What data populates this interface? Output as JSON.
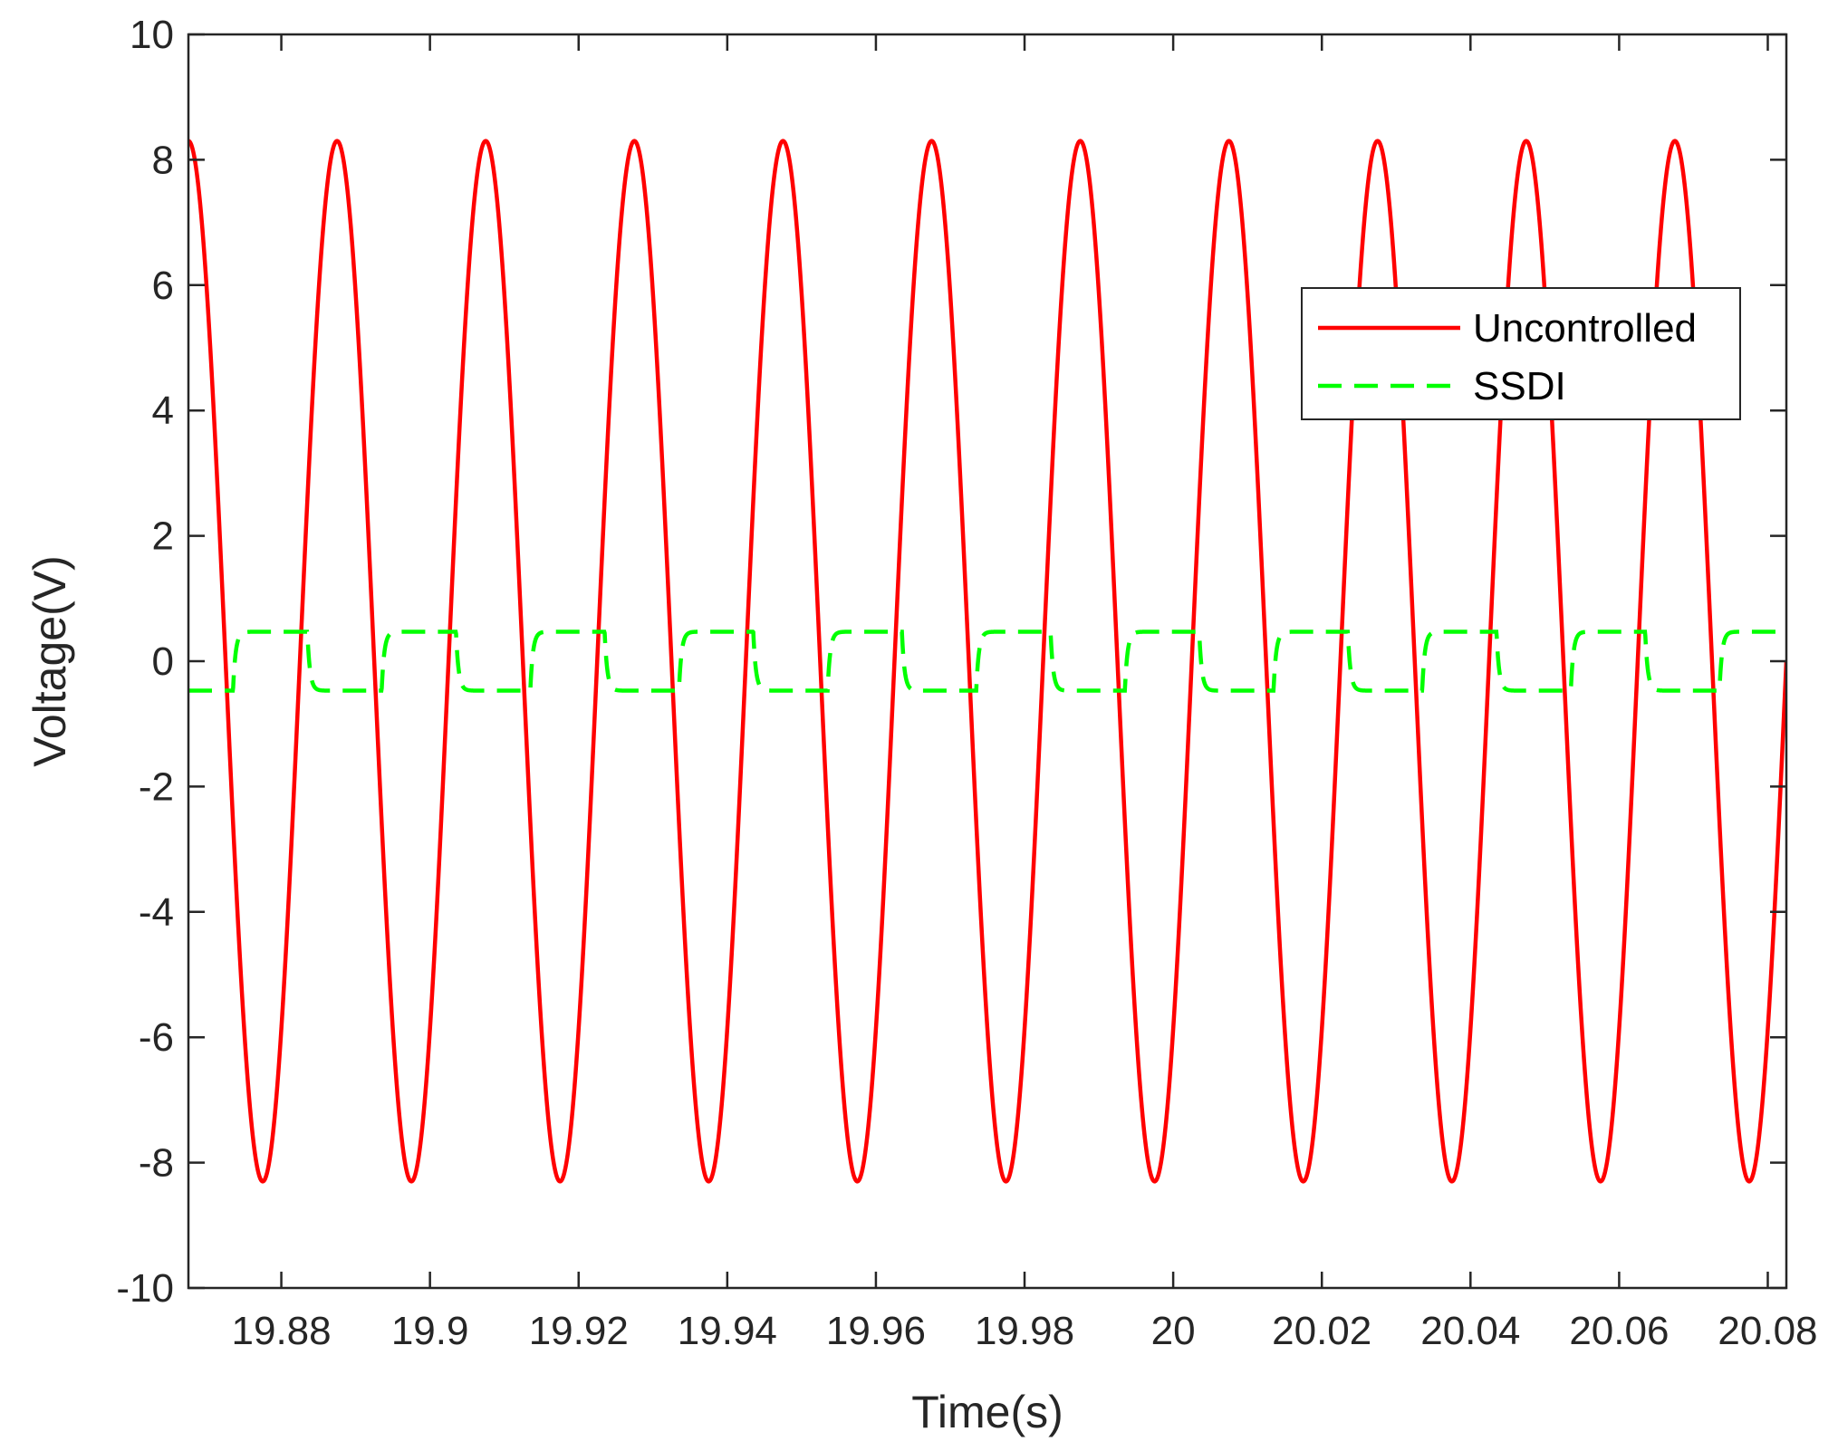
{
  "chart_data": {
    "type": "line",
    "xlabel": "Time(s)",
    "ylabel": "Voltage(V)",
    "xlim": [
      19.8675,
      20.0825
    ],
    "ylim": [
      -10,
      10
    ],
    "x_ticks": [
      19.88,
      19.9,
      19.92,
      19.94,
      19.96,
      19.98,
      20,
      20.02,
      20.04,
      20.06,
      20.08
    ],
    "x_tick_labels": [
      "19.88",
      "19.9",
      "19.92",
      "19.94",
      "19.96",
      "19.98",
      "20",
      "20.02",
      "20.04",
      "20.06",
      "20.08"
    ],
    "y_ticks": [
      -10,
      -8,
      -6,
      -4,
      -2,
      0,
      2,
      4,
      6,
      8,
      10
    ],
    "y_tick_labels": [
      "-10",
      "-8",
      "-6",
      "-4",
      "-2",
      "0",
      "2",
      "4",
      "6",
      "8",
      "10"
    ],
    "grid": false,
    "legend_position": "top-right",
    "series": [
      {
        "name": "Uncontrolled",
        "color": "#ff0000",
        "style": "solid",
        "model": "sine",
        "amplitude": 8.3,
        "period": 0.02,
        "peak_time": 19.8875
      },
      {
        "name": "SSDI",
        "color": "#00ff00",
        "style": "dashed",
        "model": "switched",
        "amplitude": 0.47,
        "period": 0.02,
        "switch_times_positive": [
          19.8735,
          19.8935,
          19.9135,
          19.9335,
          19.9535,
          19.9735,
          19.9935,
          20.0135,
          20.0335,
          20.0535,
          20.0735
        ],
        "switch_times_negative": [
          19.8835,
          19.9035,
          19.9235,
          19.9435,
          19.9635,
          19.9835,
          20.0035,
          20.0235,
          20.0435,
          20.0635
        ]
      }
    ]
  }
}
